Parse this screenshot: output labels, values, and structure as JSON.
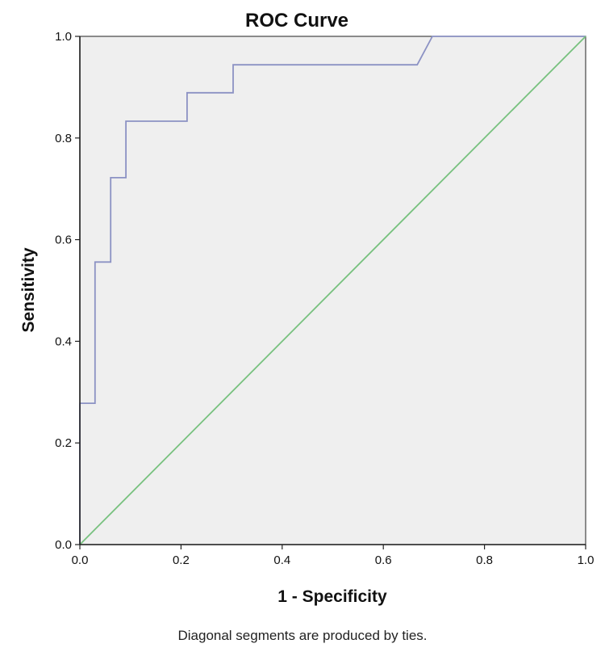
{
  "chart_data": {
    "type": "line",
    "title": "ROC Curve",
    "xlabel": "1 - Specificity",
    "ylabel": "Sensitivity",
    "xlim": [
      0.0,
      1.0
    ],
    "ylim": [
      0.0,
      1.0
    ],
    "xticks": [
      "0.0",
      "0.2",
      "0.4",
      "0.6",
      "0.8",
      "1.0"
    ],
    "yticks": [
      "0.0",
      "0.2",
      "0.4",
      "0.6",
      "0.8",
      "1.0"
    ],
    "grid": false,
    "plot_background": "#efefef",
    "series": [
      {
        "color": "#8c92c4",
        "x": [
          0.0,
          0.0,
          0.03,
          0.03,
          0.061,
          0.061,
          0.091,
          0.091,
          0.212,
          0.212,
          0.303,
          0.303,
          0.667,
          0.697,
          1.0
        ],
        "y": [
          0.0,
          0.278,
          0.278,
          0.556,
          0.556,
          0.722,
          0.722,
          0.833,
          0.833,
          0.889,
          0.889,
          0.944,
          0.944,
          1.0,
          1.0
        ]
      },
      {
        "color": "#77c17e",
        "x": [
          0.0,
          1.0
        ],
        "y": [
          0.0,
          1.0
        ]
      }
    ]
  },
  "footnote": "Diagonal segments are produced by ties."
}
